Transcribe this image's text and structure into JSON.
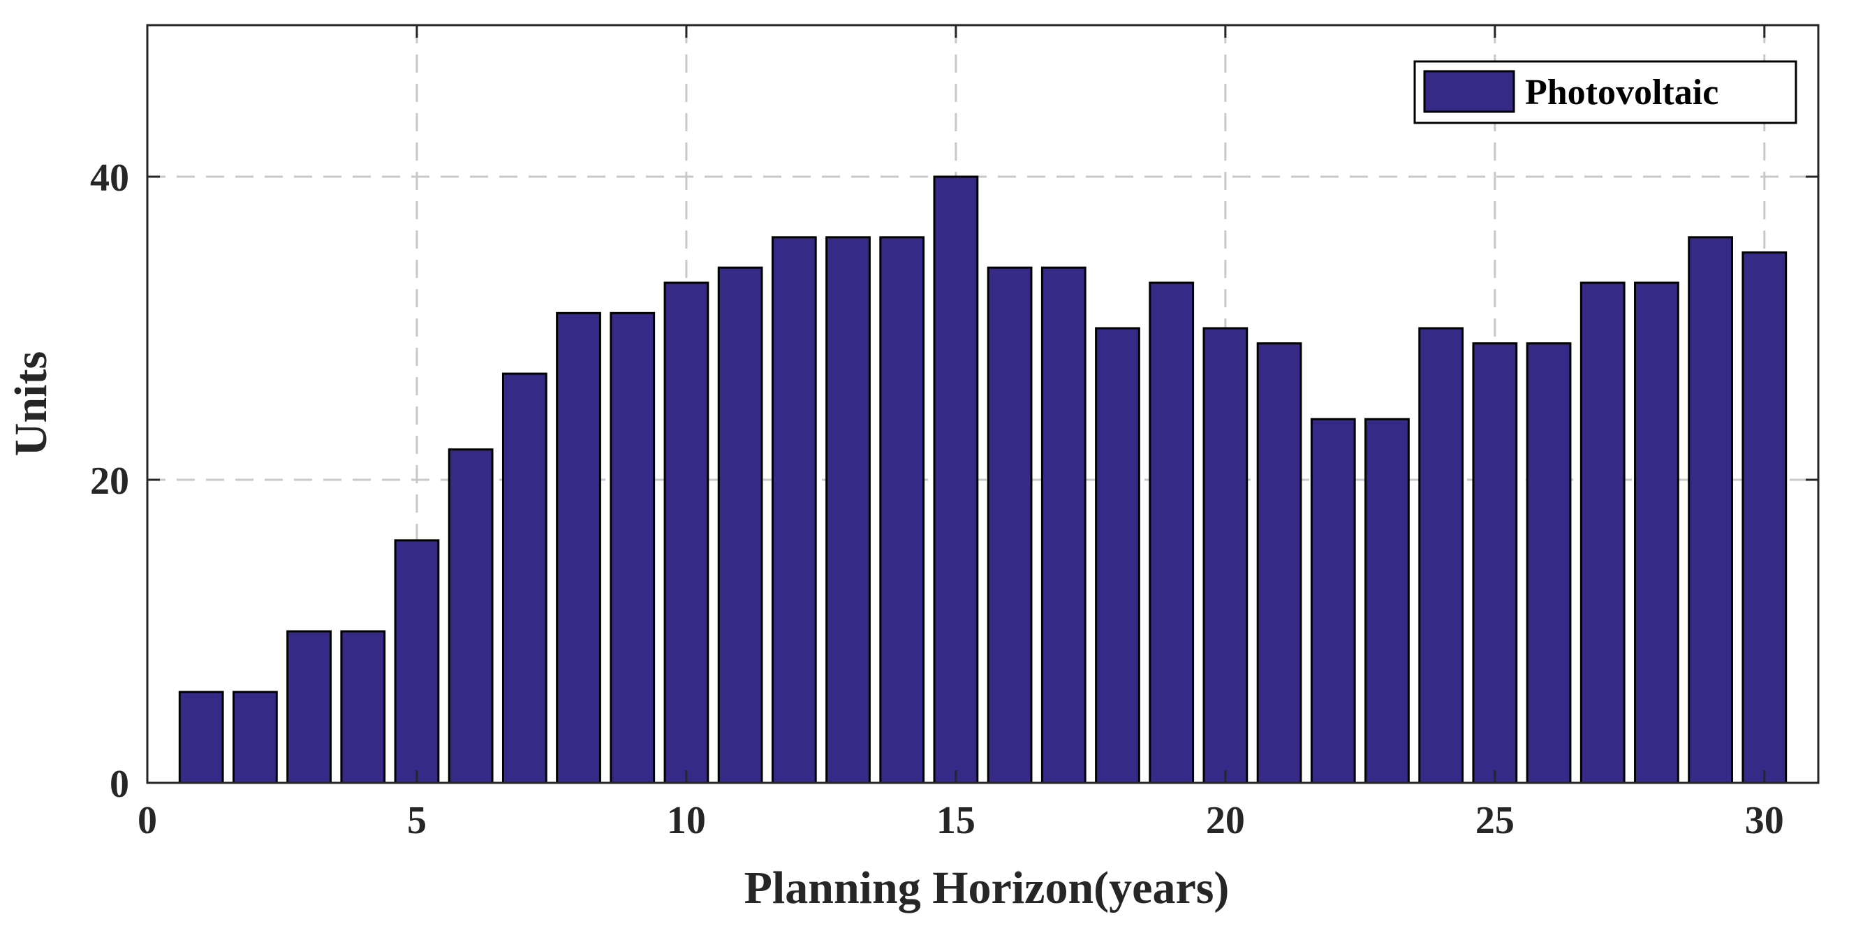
{
  "chart_data": {
    "type": "bar",
    "x": [
      1,
      2,
      3,
      4,
      5,
      6,
      7,
      8,
      9,
      10,
      11,
      12,
      13,
      14,
      15,
      16,
      17,
      18,
      19,
      20,
      21,
      22,
      23,
      24,
      25,
      26,
      27,
      28,
      29,
      30
    ],
    "series": [
      {
        "name": "Photovoltaic",
        "values": [
          6,
          6,
          10,
          10,
          16,
          22,
          27,
          31,
          31,
          33,
          34,
          36,
          36,
          36,
          40,
          34,
          34,
          30,
          33,
          30,
          29,
          24,
          24,
          30,
          29,
          29,
          33,
          33,
          36,
          35
        ]
      }
    ],
    "xlabel": "Planning Horizon(years)",
    "ylabel": "Units",
    "xlim": [
      0,
      31
    ],
    "ylim": [
      0,
      50
    ],
    "xticks": [
      "0",
      "5",
      "10",
      "15",
      "20",
      "25",
      "30"
    ],
    "yticks": [
      "0",
      "20",
      "40"
    ],
    "grid": true,
    "legend_position": "top-right",
    "colors": {
      "bar": "#362A87",
      "edge": "#000000",
      "grid": "#c8c8c8",
      "axis": "#262626"
    }
  }
}
